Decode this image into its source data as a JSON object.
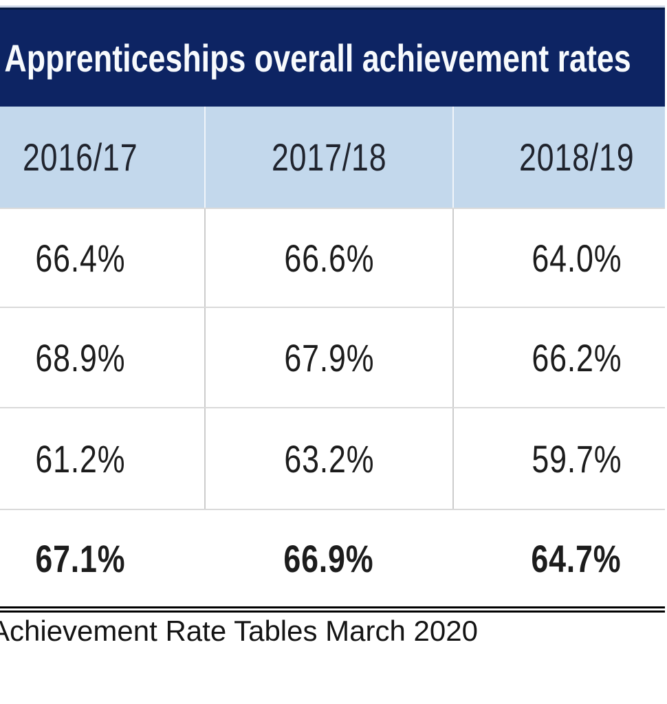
{
  "title": "Apprenticeships overall achievement rates",
  "chart_data": {
    "type": "table",
    "title": "Apprenticeships overall achievement rates",
    "columns": [
      "2016/17",
      "2017/18",
      "2018/19"
    ],
    "rows_display": [
      [
        "66.4%",
        "66.6%",
        "64.0%"
      ],
      [
        "68.9%",
        "67.9%",
        "66.2%"
      ],
      [
        "61.2%",
        "63.2%",
        "59.7%"
      ],
      [
        "67.1%",
        "66.9%",
        "64.7%"
      ]
    ],
    "rows_numeric": [
      [
        66.4,
        66.6,
        64.0
      ],
      [
        68.9,
        67.9,
        66.2
      ],
      [
        61.2,
        63.2,
        59.7
      ],
      [
        67.1,
        66.9,
        64.7
      ]
    ],
    "row_emphasis": [
      false,
      false,
      false,
      true
    ],
    "units": "percent"
  },
  "source_note": "Achievement Rate Tables March 2020",
  "colors": {
    "title_band_bg": "#0d2463",
    "title_band_top_border": "#071a40",
    "title_text": "#f7fafd",
    "header_row_bg": "#c3d8ec",
    "body_text": "#1c1c1c",
    "row_divider": "#d9d9d9",
    "column_divider": "#cccccc",
    "double_rule": "#000000",
    "top_accent_line": "#cdd7e8"
  }
}
